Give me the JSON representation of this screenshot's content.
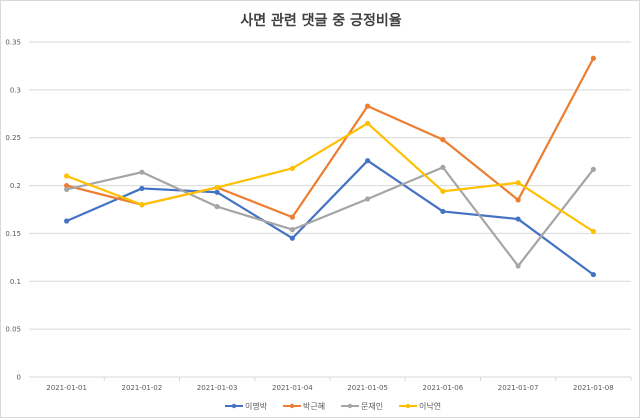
{
  "chart_data": {
    "type": "line",
    "title": "사면 관련 댓글 중 긍정비율",
    "xlabel": "",
    "ylabel": "",
    "categories": [
      "2021-01-01",
      "2021-01-02",
      "2021-01-03",
      "2021-01-04",
      "2021-01-05",
      "2021-01-06",
      "2021-01-07",
      "2021-01-08"
    ],
    "ylim": [
      0,
      0.35
    ],
    "yticks": [
      "0",
      "0.05",
      "0.1",
      "0.15",
      "0.2",
      "0.25",
      "0.3",
      "0.35"
    ],
    "grid": true,
    "legend": "bottom",
    "series": [
      {
        "name": "이명박",
        "color": "#4472c4",
        "values": [
          0.163,
          0.197,
          0.193,
          0.145,
          0.226,
          0.173,
          0.165,
          0.107
        ]
      },
      {
        "name": "박근혜",
        "color": "#ed7d31",
        "values": [
          0.2,
          0.18,
          0.198,
          0.167,
          0.283,
          0.248,
          0.185,
          0.333
        ]
      },
      {
        "name": "문재인",
        "color": "#a5a5a5",
        "values": [
          0.196,
          0.214,
          0.178,
          0.154,
          0.186,
          0.219,
          0.116,
          0.217
        ]
      },
      {
        "name": "이낙연",
        "color": "#ffc000",
        "values": [
          0.21,
          0.18,
          0.198,
          0.218,
          0.265,
          0.194,
          0.203,
          0.152
        ]
      }
    ]
  }
}
